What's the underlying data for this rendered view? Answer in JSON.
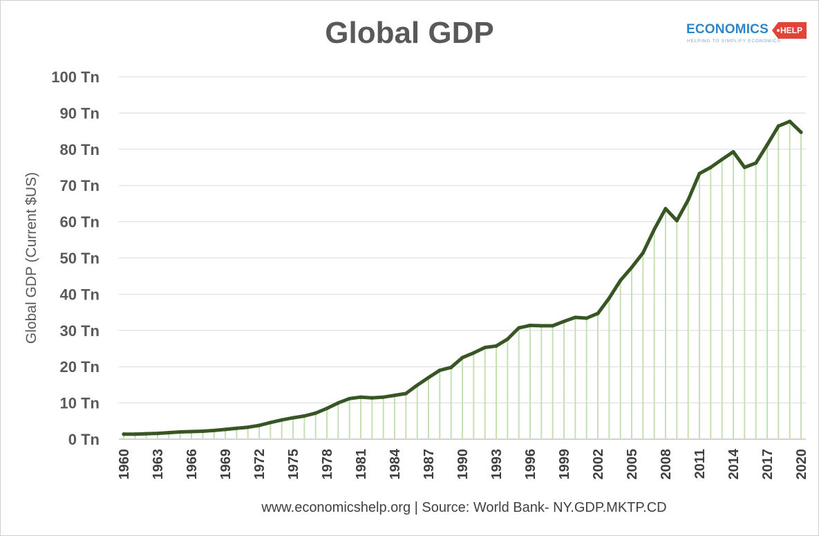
{
  "chart_data": {
    "type": "area",
    "title": "Global GDP",
    "ylabel": "Global GDP (Current $US)",
    "xlabel": "",
    "ylim": [
      0,
      100
    ],
    "yticks": [
      0,
      10,
      20,
      30,
      40,
      50,
      60,
      70,
      80,
      90,
      100
    ],
    "ytick_suffix": " Tn",
    "xticks": [
      1960,
      1963,
      1966,
      1969,
      1972,
      1975,
      1978,
      1981,
      1984,
      1987,
      1990,
      1993,
      1996,
      1999,
      2002,
      2005,
      2008,
      2011,
      2014,
      2017,
      2020
    ],
    "grid": true,
    "legend": "none",
    "series": [
      {
        "x": [
          1960,
          1961,
          1962,
          1963,
          1964,
          1965,
          1966,
          1967,
          1968,
          1969,
          1970,
          1971,
          1972,
          1973,
          1974,
          1975,
          1976,
          1977,
          1978,
          1979,
          1980,
          1981,
          1982,
          1983,
          1984,
          1985,
          1986,
          1987,
          1988,
          1989,
          1990,
          1991,
          1992,
          1993,
          1994,
          1995,
          1996,
          1997,
          1998,
          1999,
          2000,
          2001,
          2002,
          2003,
          2004,
          2005,
          2006,
          2007,
          2008,
          2009,
          2010,
          2011,
          2012,
          2013,
          2014,
          2015,
          2016,
          2017,
          2018,
          2019,
          2020
        ],
        "values": [
          1.4,
          1.4,
          1.5,
          1.6,
          1.8,
          2.0,
          2.1,
          2.2,
          2.4,
          2.7,
          3.0,
          3.3,
          3.8,
          4.6,
          5.3,
          5.9,
          6.4,
          7.2,
          8.5,
          10.0,
          11.2,
          11.6,
          11.4,
          11.6,
          12.1,
          12.6,
          14.9,
          17.0,
          19.0,
          19.8,
          22.5,
          23.8,
          25.3,
          25.7,
          27.6,
          30.7,
          31.4,
          31.3,
          31.3,
          32.5,
          33.6,
          33.4,
          34.7,
          38.9,
          43.8,
          47.4,
          51.4,
          57.9,
          63.6,
          60.3,
          66.0,
          73.3,
          75.0,
          77.2,
          79.3,
          75.0,
          76.2,
          81.2,
          86.4,
          87.7,
          84.7
        ],
        "line_color": "#375623",
        "fill_color": "#c5e0b4"
      }
    ]
  },
  "logo": {
    "word": "ECONOMICS",
    "tag": "HELP",
    "tagline": "HELPING TO SIMPLIFY ECONOMICS"
  },
  "source_note": "www.economicshelp.org | Source: World Bank- NY.GDP.MKTP.CD"
}
